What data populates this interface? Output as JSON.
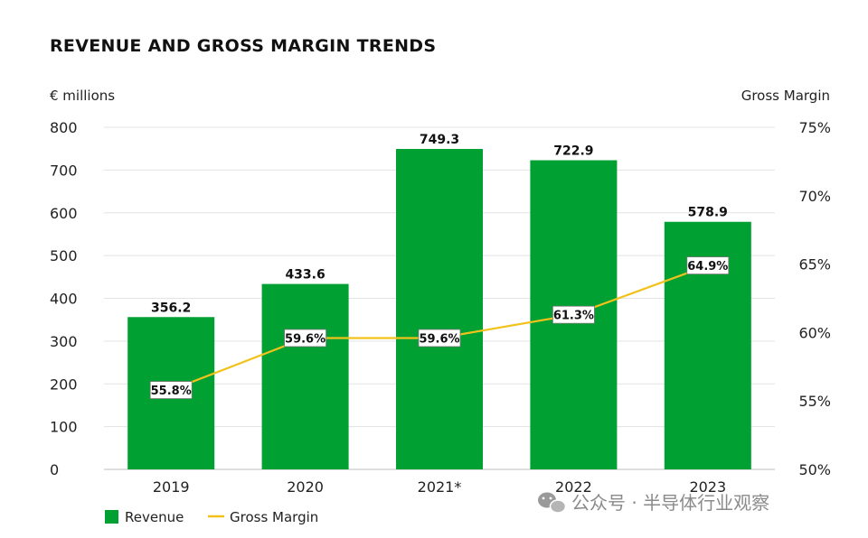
{
  "chart_data": {
    "type": "bar",
    "title": "REVENUE AND GROSS MARGIN TRENDS",
    "ylabel": "€ millions",
    "y2label": "Gross Margin",
    "categories": [
      "2019",
      "2020",
      "2021*",
      "2022",
      "2023"
    ],
    "ylim": [
      0,
      800
    ],
    "yticks": [
      0,
      100,
      200,
      300,
      400,
      500,
      600,
      700,
      800
    ],
    "y2lim": [
      50,
      75
    ],
    "y2ticks": [
      50,
      55,
      60,
      65,
      70,
      75
    ],
    "grid": true,
    "series": [
      {
        "name": "Revenue",
        "type": "bar",
        "axis": "left",
        "values": [
          356.2,
          433.6,
          749.3,
          722.9,
          578.9
        ],
        "labels": [
          "356.2",
          "433.6",
          "749.3",
          "722.9",
          "578.9"
        ],
        "color": "#00a032"
      },
      {
        "name": "Gross Margin",
        "type": "line",
        "axis": "right",
        "values": [
          55.8,
          59.6,
          59.6,
          61.3,
          64.9
        ],
        "labels": [
          "55.8%",
          "59.6%",
          "59.6%",
          "61.3%",
          "64.9%"
        ],
        "color": "#f2c21b"
      }
    ],
    "legend": {
      "position": "bottom-left",
      "items": [
        "Revenue",
        "Gross Margin"
      ]
    }
  },
  "watermark": {
    "text": "公众号 · 半导体行业观察",
    "icon": "wechat-icon"
  }
}
